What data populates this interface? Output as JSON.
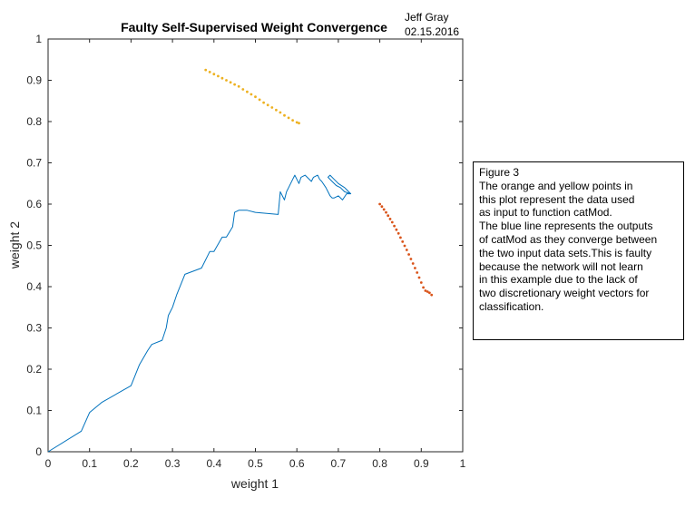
{
  "chart_data": {
    "type": "scatter",
    "title": "Faulty Self-Supervised Weight Convergence",
    "xlabel": "weight 1",
    "ylabel": "weight 2",
    "xlim": [
      0,
      1
    ],
    "ylim": [
      0,
      1
    ],
    "xticks": [
      "0",
      "0.1",
      "0.2",
      "0.3",
      "0.4",
      "0.5",
      "0.6",
      "0.7",
      "0.8",
      "0.9",
      "1"
    ],
    "yticks": [
      "0",
      "0.1",
      "0.2",
      "0.3",
      "0.4",
      "0.5",
      "0.6",
      "0.7",
      "0.8",
      "0.9",
      "1"
    ],
    "grid": false,
    "series": [
      {
        "kind": "line",
        "color": "#0072bd",
        "x": [
          0.0,
          0.08,
          0.1,
          0.13,
          0.2,
          0.22,
          0.24,
          0.25,
          0.275,
          0.285,
          0.29,
          0.3,
          0.31,
          0.33,
          0.37,
          0.39,
          0.4,
          0.42,
          0.43,
          0.445,
          0.45,
          0.46,
          0.48,
          0.5,
          0.555,
          0.56,
          0.57,
          0.575,
          0.58,
          0.59,
          0.595,
          0.6,
          0.605,
          0.61,
          0.62,
          0.635,
          0.64,
          0.65,
          0.655,
          0.66,
          0.67,
          0.675,
          0.68,
          0.685,
          0.69,
          0.7,
          0.71,
          0.72,
          0.73,
          0.715,
          0.7,
          0.69,
          0.68,
          0.675,
          0.685,
          0.695,
          0.705,
          0.715,
          0.73
        ],
        "y": [
          0.0,
          0.05,
          0.095,
          0.12,
          0.16,
          0.21,
          0.245,
          0.26,
          0.27,
          0.3,
          0.33,
          0.35,
          0.38,
          0.43,
          0.445,
          0.485,
          0.485,
          0.52,
          0.52,
          0.545,
          0.58,
          0.585,
          0.585,
          0.58,
          0.575,
          0.63,
          0.61,
          0.63,
          0.64,
          0.66,
          0.67,
          0.66,
          0.65,
          0.665,
          0.67,
          0.655,
          0.665,
          0.67,
          0.66,
          0.655,
          0.64,
          0.63,
          0.62,
          0.615,
          0.615,
          0.62,
          0.61,
          0.625,
          0.625,
          0.64,
          0.65,
          0.66,
          0.67,
          0.665,
          0.655,
          0.645,
          0.64,
          0.63,
          0.625
        ]
      },
      {
        "kind": "points",
        "color": "#d95319",
        "x": [
          0.8,
          0.805,
          0.81,
          0.815,
          0.82,
          0.825,
          0.83,
          0.835,
          0.84,
          0.845,
          0.85,
          0.855,
          0.86,
          0.865,
          0.87,
          0.875,
          0.88,
          0.885,
          0.89,
          0.895,
          0.9,
          0.905,
          0.91,
          0.915,
          0.92,
          0.925
        ],
        "y": [
          0.6,
          0.594,
          0.587,
          0.58,
          0.572,
          0.564,
          0.556,
          0.547,
          0.538,
          0.529,
          0.519,
          0.509,
          0.499,
          0.489,
          0.478,
          0.467,
          0.456,
          0.445,
          0.434,
          0.422,
          0.41,
          0.398,
          0.39,
          0.388,
          0.385,
          0.38
        ]
      },
      {
        "kind": "points",
        "color": "#edb120",
        "x": [
          0.38,
          0.39,
          0.4,
          0.41,
          0.42,
          0.43,
          0.44,
          0.45,
          0.46,
          0.47,
          0.48,
          0.49,
          0.5,
          0.51,
          0.52,
          0.53,
          0.54,
          0.55,
          0.56,
          0.57,
          0.58,
          0.59,
          0.6,
          0.605
        ],
        "y": [
          0.925,
          0.92,
          0.915,
          0.91,
          0.905,
          0.9,
          0.895,
          0.89,
          0.885,
          0.878,
          0.872,
          0.866,
          0.86,
          0.853,
          0.846,
          0.84,
          0.834,
          0.828,
          0.822,
          0.815,
          0.809,
          0.803,
          0.798,
          0.796
        ]
      }
    ],
    "author": "Jeff Gray",
    "date": "02.15.2016",
    "annotation_lines": [
      "Figure 3",
      "The orange and yellow points in",
      "this plot represent the data used",
      "as input to function catMod.",
      "The blue line represents the outputs",
      "of catMod as they converge between",
      "the two input data sets.This is faulty",
      "because the network will not learn",
      "in this example due to the lack of",
      "two discretionary weight vectors for",
      "classification."
    ]
  }
}
